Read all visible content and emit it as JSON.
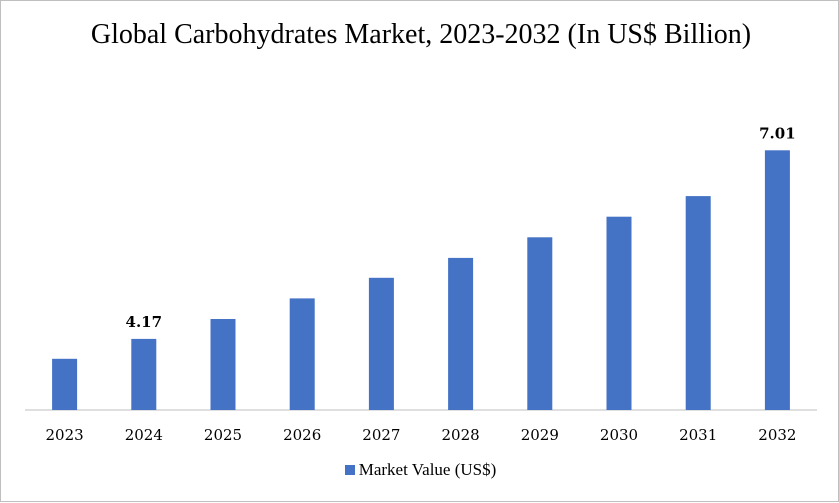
{
  "chart_data": {
    "type": "bar",
    "title": "Global Carbohydrates Market, 2023-2032 (In US$ Billion)",
    "categories": [
      "2023",
      "2024",
      "2025",
      "2026",
      "2027",
      "2028",
      "2029",
      "2030",
      "2031",
      "2032"
    ],
    "series": [
      {
        "name": "Market Value (US$)",
        "values": [
          3.87,
          4.17,
          4.47,
          4.78,
          5.09,
          5.39,
          5.7,
          6.01,
          6.32,
          7.01
        ],
        "color": "#4472C4"
      }
    ],
    "data_labels": [
      {
        "category": "2024",
        "text": "4.17"
      },
      {
        "category": "2032",
        "text": "7.01"
      }
    ],
    "ylim": [
      3.1,
      7.3
    ],
    "grid": false,
    "legend_position": "bottom"
  }
}
